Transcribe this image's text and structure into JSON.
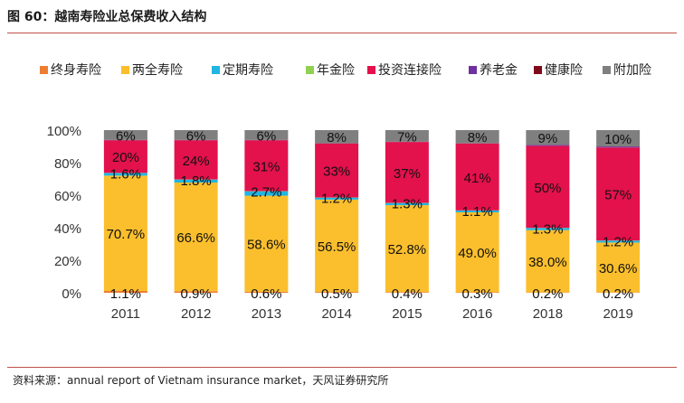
{
  "header": {
    "title": "图 60：越南寿险业总保费收入结构"
  },
  "footer": {
    "source": "资料来源：annual report of Vietnam insurance market，天风证券研究所"
  },
  "chart_data": {
    "type": "bar",
    "stacked": true,
    "title": "图 60：越南寿险业总保费收入结构",
    "xlabel": "",
    "ylabel": "",
    "ylim": [
      0,
      100
    ],
    "yticks": [
      "0%",
      "20%",
      "40%",
      "60%",
      "80%",
      "100%"
    ],
    "legend_position": "top",
    "categories": [
      "2011",
      "2012",
      "2013",
      "2014",
      "2015",
      "2016",
      "2018",
      "2019"
    ],
    "series": [
      {
        "name": "终身寿险",
        "color": "#ed7d31",
        "values": [
          1.1,
          0.9,
          0.6,
          0.5,
          0.4,
          0.3,
          0.2,
          0.2
        ],
        "labels": [
          "1.1%",
          "0.9%",
          "0.6%",
          "0.5%",
          "0.4%",
          "0.3%",
          "0.2%",
          "0.2%"
        ]
      },
      {
        "name": "两全寿险",
        "color": "#fbbf2d",
        "values": [
          70.7,
          66.6,
          58.6,
          56.5,
          52.8,
          49.0,
          38.0,
          30.6
        ],
        "labels": [
          "70.7%",
          "66.6%",
          "58.6%",
          "56.5%",
          "52.8%",
          "49.0%",
          "38.0%",
          "30.6%"
        ]
      },
      {
        "name": "定期寿险",
        "color": "#21b5e2",
        "values": [
          1.6,
          1.8,
          2.7,
          1.2,
          1.3,
          1.1,
          1.3,
          1.2
        ],
        "labels": [
          "1.6%",
          "1.8%",
          "2.7%",
          "1.2%",
          "1.3%",
          "1.1%",
          "1.3%",
          "1.2%"
        ]
      },
      {
        "name": "年金险",
        "color": "#92d050",
        "values": [
          0.1,
          0.1,
          0.1,
          0.1,
          0.1,
          0.1,
          0.1,
          0.1
        ],
        "labels": [
          "",
          "",
          "",
          "",
          "",
          "",
          "",
          ""
        ]
      },
      {
        "name": "投资连接险",
        "color": "#e3114c",
        "values": [
          20,
          24,
          31,
          33,
          37,
          41,
          50,
          57
        ],
        "labels": [
          "20%",
          "24%",
          "31%",
          "33%",
          "37%",
          "41%",
          "50%",
          "57%"
        ]
      },
      {
        "name": "养老金",
        "color": "#7030a0",
        "values": [
          0.1,
          0.1,
          0.1,
          0.1,
          0.1,
          0.1,
          0.5,
          0.6
        ],
        "labels": [
          "",
          "",
          "",
          "",
          "",
          "",
          "",
          ""
        ]
      },
      {
        "name": "健康险",
        "color": "#7f0a1c",
        "values": [
          0.1,
          0.1,
          0.1,
          0.1,
          0.1,
          0.1,
          0.1,
          0.1
        ],
        "labels": [
          "",
          "",
          "",
          "",
          "",
          "",
          "",
          ""
        ]
      },
      {
        "name": "附加险",
        "color": "#7f7f7f",
        "values": [
          6,
          6,
          6,
          8,
          7,
          8,
          9,
          10
        ],
        "labels": [
          "6%",
          "6%",
          "6%",
          "8%",
          "7%",
          "8%",
          "9%",
          "10%"
        ]
      }
    ]
  }
}
